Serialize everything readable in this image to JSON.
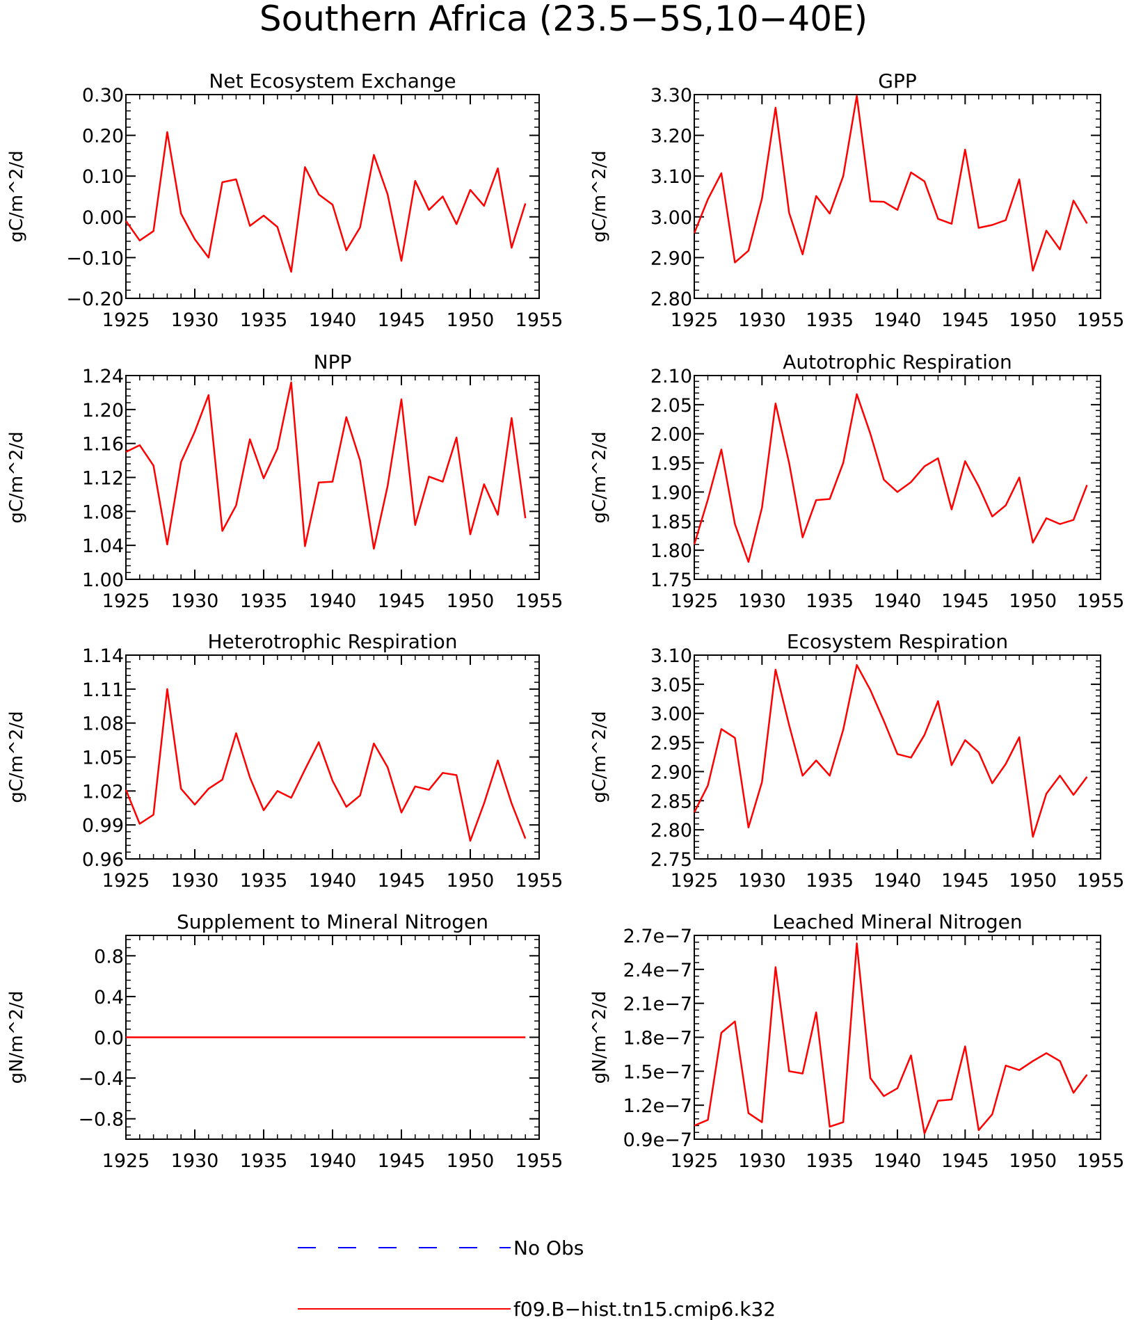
{
  "title": "Southern Africa (23.5-5S,10-40E)",
  "chart_data": [
    {
      "type": "line",
      "title": "Net Ecosystem Exchange",
      "ylabel": "gC/m^2/d",
      "xlim": [
        1925,
        1955
      ],
      "ylim": [
        -0.2,
        0.3
      ],
      "xticks": [
        1925,
        1930,
        1935,
        1940,
        1945,
        1950,
        1955
      ],
      "xtick_labels": [
        "1925",
        "1930",
        "1935",
        "1940",
        "1945",
        "1950",
        "1955"
      ],
      "yticks": [
        -0.2,
        -0.1,
        0.0,
        0.1,
        0.2,
        0.3
      ],
      "ytick_labels": [
        "-0.20",
        "-0.10",
        "0.00",
        "0.10",
        "0.20",
        "0.30"
      ],
      "series": [
        {
          "name": "f09.B-hist.tn15.cmip6.k32",
          "color": "#ff0000",
          "x": [
            1925,
            1926,
            1927,
            1928,
            1929,
            1930,
            1931,
            1932,
            1933,
            1934,
            1935,
            1936,
            1937,
            1938,
            1939,
            1940,
            1941,
            1942,
            1943,
            1944,
            1945,
            1946,
            1947,
            1948,
            1949,
            1950,
            1951,
            1952,
            1953,
            1954
          ],
          "y": [
            -0.01,
            -0.058,
            -0.035,
            0.208,
            0.008,
            -0.055,
            -0.1,
            0.085,
            0.092,
            -0.022,
            0.003,
            -0.025,
            -0.135,
            0.122,
            0.055,
            0.03,
            -0.082,
            -0.026,
            0.152,
            0.055,
            -0.108,
            0.088,
            0.017,
            0.05,
            -0.018,
            0.066,
            0.027,
            0.119,
            -0.076,
            0.033
          ]
        }
      ]
    },
    {
      "type": "line",
      "title": "GPP",
      "ylabel": "gC/m^2/d",
      "xlim": [
        1925,
        1955
      ],
      "ylim": [
        2.8,
        3.3
      ],
      "xticks": [
        1925,
        1930,
        1935,
        1940,
        1945,
        1950,
        1955
      ],
      "xtick_labels": [
        "1925",
        "1930",
        "1935",
        "1940",
        "1945",
        "1950",
        "1955"
      ],
      "yticks": [
        2.8,
        2.9,
        3.0,
        3.1,
        3.2,
        3.3
      ],
      "ytick_labels": [
        "2.80",
        "2.90",
        "3.00",
        "3.10",
        "3.20",
        "3.30"
      ],
      "series": [
        {
          "name": "f09.B-hist.tn15.cmip6.k32",
          "color": "#ff0000",
          "x": [
            1925,
            1926,
            1927,
            1928,
            1929,
            1930,
            1931,
            1932,
            1933,
            1934,
            1935,
            1936,
            1937,
            1938,
            1939,
            1940,
            1941,
            1942,
            1943,
            1944,
            1945,
            1946,
            1947,
            1948,
            1949,
            1950,
            1951,
            1952,
            1953,
            1954
          ],
          "y": [
            2.96,
            3.043,
            3.107,
            2.888,
            2.917,
            3.045,
            3.268,
            3.01,
            2.908,
            3.051,
            3.008,
            3.1,
            3.297,
            3.038,
            3.037,
            3.017,
            3.109,
            3.087,
            2.995,
            2.983,
            3.165,
            2.973,
            2.98,
            2.992,
            3.092,
            2.868,
            2.966,
            2.92,
            3.04,
            2.984
          ]
        }
      ]
    },
    {
      "type": "line",
      "title": "NPP",
      "ylabel": "gC/m^2/d",
      "xlim": [
        1925,
        1955
      ],
      "ylim": [
        1.0,
        1.24
      ],
      "xticks": [
        1925,
        1930,
        1935,
        1940,
        1945,
        1950,
        1955
      ],
      "xtick_labels": [
        "1925",
        "1930",
        "1935",
        "1940",
        "1945",
        "1950",
        "1955"
      ],
      "yticks": [
        1.0,
        1.04,
        1.08,
        1.12,
        1.16,
        1.2,
        1.24
      ],
      "ytick_labels": [
        "1.00",
        "1.04",
        "1.08",
        "1.12",
        "1.16",
        "1.20",
        "1.24"
      ],
      "series": [
        {
          "name": "f09.B-hist.tn15.cmip6.k32",
          "color": "#ff0000",
          "x": [
            1925,
            1926,
            1927,
            1928,
            1929,
            1930,
            1931,
            1932,
            1933,
            1934,
            1935,
            1936,
            1937,
            1938,
            1939,
            1940,
            1941,
            1942,
            1943,
            1944,
            1945,
            1946,
            1947,
            1948,
            1949,
            1950,
            1951,
            1952,
            1953,
            1954
          ],
          "y": [
            1.15,
            1.158,
            1.134,
            1.041,
            1.138,
            1.174,
            1.217,
            1.057,
            1.087,
            1.165,
            1.119,
            1.154,
            1.232,
            1.039,
            1.114,
            1.115,
            1.191,
            1.14,
            1.036,
            1.11,
            1.212,
            1.064,
            1.121,
            1.115,
            1.167,
            1.053,
            1.112,
            1.076,
            1.19,
            1.072
          ]
        }
      ]
    },
    {
      "type": "line",
      "title": "Autotrophic Respiration",
      "ylabel": "gC/m^2/d",
      "xlim": [
        1925,
        1955
      ],
      "ylim": [
        1.75,
        2.1
      ],
      "xticks": [
        1925,
        1930,
        1935,
        1940,
        1945,
        1950,
        1955
      ],
      "xtick_labels": [
        "1925",
        "1930",
        "1935",
        "1940",
        "1945",
        "1950",
        "1955"
      ],
      "yticks": [
        1.75,
        1.8,
        1.85,
        1.9,
        1.95,
        2.0,
        2.05,
        2.1
      ],
      "ytick_labels": [
        "1.75",
        "1.80",
        "1.85",
        "1.90",
        "1.95",
        "2.00",
        "2.05",
        "2.10"
      ],
      "series": [
        {
          "name": "f09.B-hist.tn15.cmip6.k32",
          "color": "#ff0000",
          "x": [
            1925,
            1926,
            1927,
            1928,
            1929,
            1930,
            1931,
            1932,
            1933,
            1934,
            1935,
            1936,
            1937,
            1938,
            1939,
            1940,
            1941,
            1942,
            1943,
            1944,
            1945,
            1946,
            1947,
            1948,
            1949,
            1950,
            1951,
            1952,
            1953,
            1954
          ],
          "y": [
            1.81,
            1.887,
            1.973,
            1.845,
            1.78,
            1.873,
            2.052,
            1.95,
            1.822,
            1.886,
            1.888,
            1.95,
            2.068,
            2.0,
            1.921,
            1.9,
            1.917,
            1.944,
            1.958,
            1.87,
            1.953,
            1.91,
            1.858,
            1.877,
            1.925,
            1.813,
            1.855,
            1.845,
            1.852,
            1.912
          ]
        }
      ]
    },
    {
      "type": "line",
      "title": "Heterotrophic Respiration",
      "ylabel": "gC/m^2/d",
      "xlim": [
        1925,
        1955
      ],
      "ylim": [
        0.96,
        1.14
      ],
      "xticks": [
        1925,
        1930,
        1935,
        1940,
        1945,
        1950,
        1955
      ],
      "xtick_labels": [
        "1925",
        "1930",
        "1935",
        "1940",
        "1945",
        "1950",
        "1955"
      ],
      "yticks": [
        0.96,
        0.99,
        1.02,
        1.05,
        1.08,
        1.11,
        1.14
      ],
      "ytick_labels": [
        "0.96",
        "0.99",
        "1.02",
        "1.05",
        "1.08",
        "1.11",
        "1.14"
      ],
      "series": [
        {
          "name": "f09.B-hist.tn15.cmip6.k32",
          "color": "#ff0000",
          "x": [
            1925,
            1926,
            1927,
            1928,
            1929,
            1930,
            1931,
            1932,
            1933,
            1934,
            1935,
            1936,
            1937,
            1938,
            1939,
            1940,
            1941,
            1942,
            1943,
            1944,
            1945,
            1946,
            1947,
            1948,
            1949,
            1950,
            1951,
            1952,
            1953,
            1954
          ],
          "y": [
            1.021,
            0.991,
            0.999,
            1.11,
            1.022,
            1.008,
            1.022,
            1.03,
            1.071,
            1.032,
            1.003,
            1.02,
            1.014,
            1.039,
            1.063,
            1.029,
            1.006,
            1.016,
            1.062,
            1.041,
            1.001,
            1.024,
            1.021,
            1.036,
            1.034,
            0.976,
            1.009,
            1.047,
            1.009,
            0.978
          ]
        }
      ]
    },
    {
      "type": "line",
      "title": "Ecosystem Respiration",
      "ylabel": "gC/m^2/d",
      "xlim": [
        1925,
        1955
      ],
      "ylim": [
        2.75,
        3.1
      ],
      "xticks": [
        1925,
        1930,
        1935,
        1940,
        1945,
        1950,
        1955
      ],
      "xtick_labels": [
        "1925",
        "1930",
        "1935",
        "1940",
        "1945",
        "1950",
        "1955"
      ],
      "yticks": [
        2.75,
        2.8,
        2.85,
        2.9,
        2.95,
        3.0,
        3.05,
        3.1
      ],
      "ytick_labels": [
        "2.75",
        "2.80",
        "2.85",
        "2.90",
        "2.95",
        "3.00",
        "3.05",
        "3.10"
      ],
      "series": [
        {
          "name": "f09.B-hist.tn15.cmip6.k32",
          "color": "#ff0000",
          "x": [
            1925,
            1926,
            1927,
            1928,
            1929,
            1930,
            1931,
            1932,
            1933,
            1934,
            1935,
            1936,
            1937,
            1938,
            1939,
            1940,
            1941,
            1942,
            1943,
            1944,
            1945,
            1946,
            1947,
            1948,
            1949,
            1950,
            1951,
            1952,
            1953,
            1954
          ],
          "y": [
            2.83,
            2.876,
            2.973,
            2.958,
            2.804,
            2.882,
            3.075,
            2.98,
            2.893,
            2.919,
            2.893,
            2.972,
            3.083,
            3.04,
            2.987,
            2.93,
            2.924,
            2.963,
            3.021,
            2.911,
            2.954,
            2.933,
            2.88,
            2.913,
            2.959,
            2.788,
            2.862,
            2.893,
            2.86,
            2.891
          ]
        }
      ]
    },
    {
      "type": "line",
      "title": "Supplement to Mineral Nitrogen",
      "ylabel": "gN/m^2/d",
      "xlim": [
        1925,
        1955
      ],
      "ylim": [
        -1.0,
        1.0
      ],
      "xticks": [
        1925,
        1930,
        1935,
        1940,
        1945,
        1950,
        1955
      ],
      "xtick_labels": [
        "1925",
        "1930",
        "1935",
        "1940",
        "1945",
        "1950",
        "1955"
      ],
      "yticks": [
        -0.8,
        -0.4,
        0.0,
        0.4,
        0.8
      ],
      "ytick_labels": [
        "-0.8",
        "-0.4",
        "0.0",
        "0.4",
        "0.8"
      ],
      "series": [
        {
          "name": "f09.B-hist.tn15.cmip6.k32",
          "color": "#ff0000",
          "x": [
            1925,
            1926,
            1927,
            1928,
            1929,
            1930,
            1931,
            1932,
            1933,
            1934,
            1935,
            1936,
            1937,
            1938,
            1939,
            1940,
            1941,
            1942,
            1943,
            1944,
            1945,
            1946,
            1947,
            1948,
            1949,
            1950,
            1951,
            1952,
            1953,
            1954
          ],
          "y": [
            0,
            0,
            0,
            0,
            0,
            0,
            0,
            0,
            0,
            0,
            0,
            0,
            0,
            0,
            0,
            0,
            0,
            0,
            0,
            0,
            0,
            0,
            0,
            0,
            0,
            0,
            0,
            0,
            0,
            0
          ]
        }
      ]
    },
    {
      "type": "line",
      "title": "Leached Mineral Nitrogen",
      "ylabel": "gN/m^2/d",
      "xlim": [
        1925,
        1955
      ],
      "ylim": [
        9e-08,
        2.7e-07
      ],
      "xticks": [
        1925,
        1930,
        1935,
        1940,
        1945,
        1950,
        1955
      ],
      "xtick_labels": [
        "1925",
        "1930",
        "1935",
        "1940",
        "1945",
        "1950",
        "1955"
      ],
      "yticks": [
        9e-08,
        1.2e-07,
        1.5e-07,
        1.8e-07,
        2.1e-07,
        2.4e-07,
        2.7e-07
      ],
      "ytick_labels": [
        "0.9e-7",
        "1.2e-7",
        "1.5e-7",
        "1.8e-7",
        "2.1e-7",
        "2.4e-7",
        "2.7e-7"
      ],
      "series": [
        {
          "name": "f09.B-hist.tn15.cmip6.k32",
          "color": "#ff0000",
          "x": [
            1925,
            1926,
            1927,
            1928,
            1929,
            1930,
            1931,
            1932,
            1933,
            1934,
            1935,
            1936,
            1937,
            1938,
            1939,
            1940,
            1941,
            1942,
            1943,
            1944,
            1945,
            1946,
            1947,
            1948,
            1949,
            1950,
            1951,
            1952,
            1953,
            1954
          ],
          "y": [
            1.02e-07,
            1.07e-07,
            1.84e-07,
            1.94e-07,
            1.13e-07,
            1.05e-07,
            2.42e-07,
            1.5e-07,
            1.48e-07,
            2.02e-07,
            1.01e-07,
            1.05e-07,
            2.63e-07,
            1.44e-07,
            1.28e-07,
            1.35e-07,
            1.64e-07,
            9.5e-08,
            1.24e-07,
            1.25e-07,
            1.72e-07,
            9.8e-08,
            1.12e-07,
            1.55e-07,
            1.51e-07,
            1.59e-07,
            1.66e-07,
            1.59e-07,
            1.31e-07,
            1.47e-07
          ]
        }
      ]
    }
  ],
  "legend": {
    "entries": [
      {
        "label": "No Obs",
        "color": "#0000ff",
        "style": "dashed"
      },
      {
        "label": "f09.B-hist.tn15.cmip6.k32",
        "color": "#ff0000",
        "style": "solid"
      }
    ]
  }
}
